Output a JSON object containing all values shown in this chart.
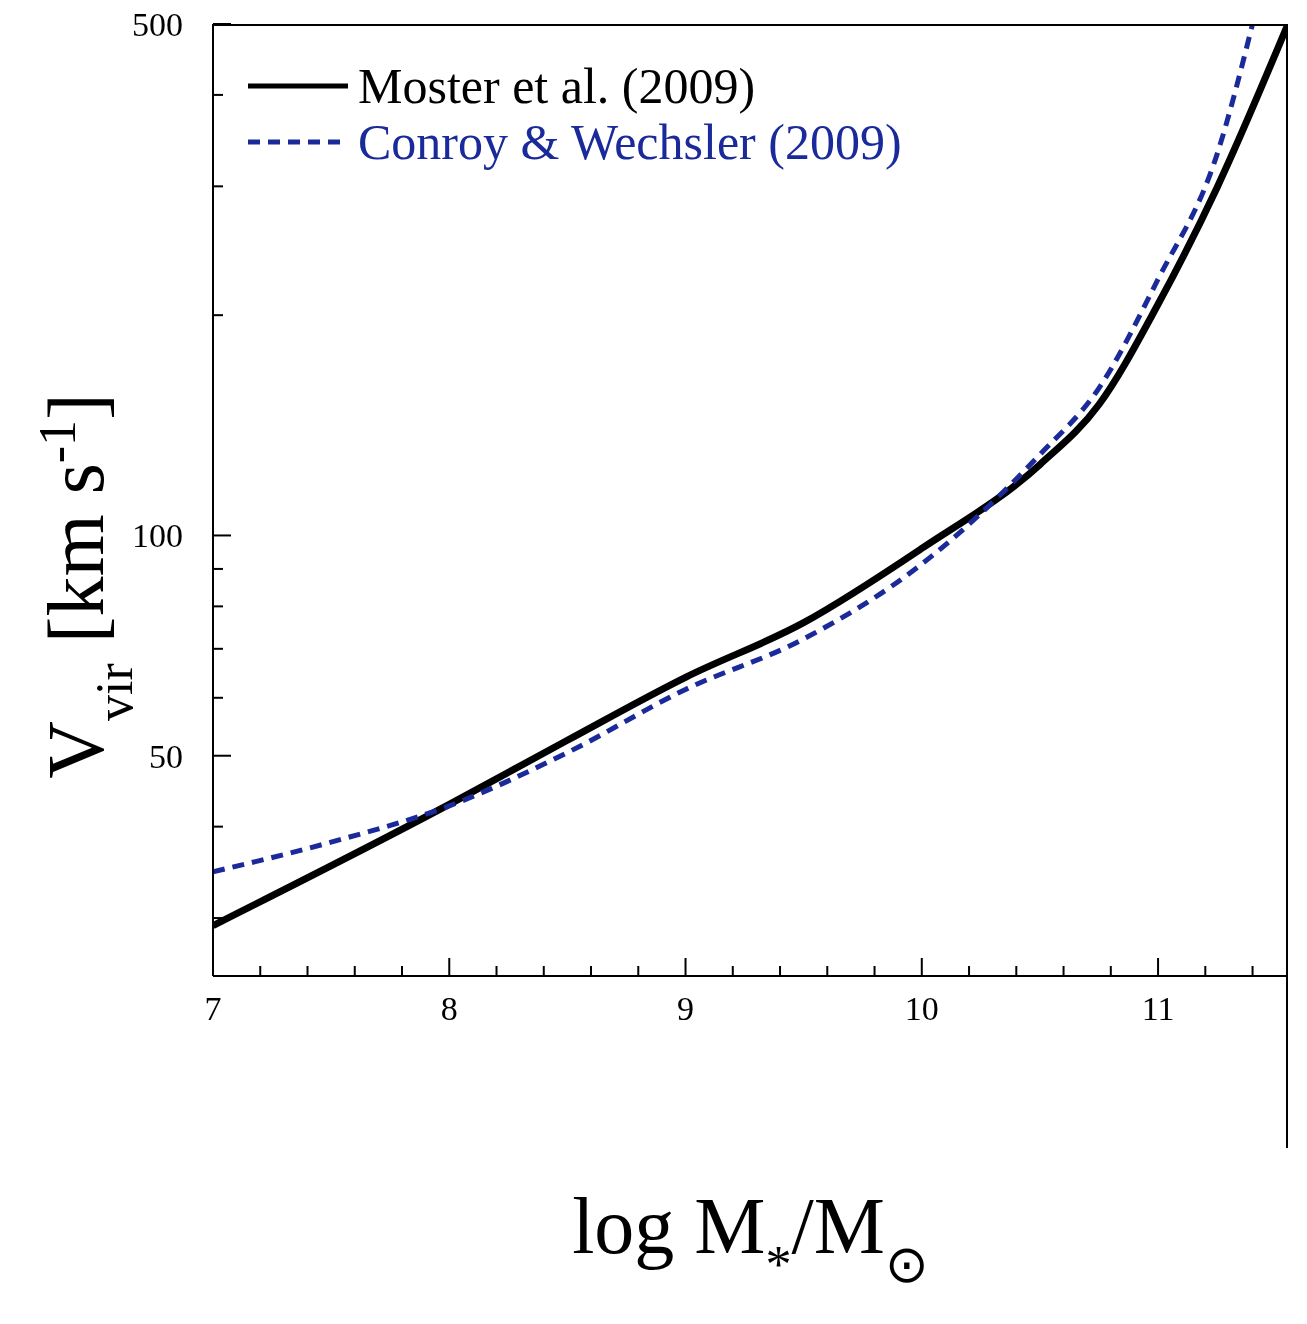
{
  "chart_data": {
    "type": "line",
    "xlabel": "log M$_{*}$/M$_{⊙}$",
    "ylabel": "V$_{vir}$ [km s$^{-1}$]",
    "log": "y",
    "xlim": [
      7,
      11.55
    ],
    "ylim": [
      25,
      500
    ],
    "xticks": [
      7,
      {
        "value": 7.2,
        "label": null
      },
      {
        "value": 7.4,
        "label": null
      },
      {
        "value": 7.6,
        "label": null
      },
      {
        "value": 7.8,
        "label": null
      },
      8,
      {
        "value": 8.2,
        "label": null
      },
      {
        "value": 8.4,
        "label": null
      },
      {
        "value": 8.6,
        "label": null
      },
      {
        "value": 8.8,
        "label": null
      },
      9,
      {
        "value": 9.2,
        "label": null
      },
      {
        "value": 9.4,
        "label": null
      },
      {
        "value": 9.6,
        "label": null
      },
      {
        "value": 9.8,
        "label": null
      },
      10,
      {
        "value": 10.2,
        "label": null
      },
      {
        "value": 10.4,
        "label": null
      },
      {
        "value": 10.6,
        "label": null
      },
      {
        "value": 10.8,
        "label": null
      },
      11,
      {
        "value": 11.2,
        "label": null
      },
      {
        "value": 11.4,
        "label": null
      }
    ],
    "yticks": [
      {
        "value": 30,
        "label": null
      },
      {
        "value": 40,
        "label": null
      },
      50,
      {
        "value": 60,
        "label": null
      },
      {
        "value": 70,
        "label": null
      },
      {
        "value": 80,
        "label": null
      },
      {
        "value": 90,
        "label": null
      },
      100,
      {
        "value": 200,
        "label": null
      },
      {
        "value": 300,
        "label": null
      },
      {
        "value": 400,
        "label": null
      },
      500
    ],
    "legend": "top left",
    "marker": "none",
    "series": [
      {
        "name": "Moster et al. (2009)",
        "color": "#000000",
        "line_style": "solid",
        "x": [
          7,
          8,
          8.5,
          9,
          9.5,
          10,
          10.5,
          10.75,
          11,
          11.25,
          11.55
        ],
        "values": [
          29.3,
          42.9,
          52.5,
          64,
          76,
          96,
          125,
          151,
          207,
          299,
          500
        ]
      },
      {
        "name": "Conroy & Wechsler (2009)",
        "color": "#1a2a9a",
        "line_style": "dashed",
        "x": [
          7,
          7.5,
          8,
          8.5,
          9,
          9.5,
          10,
          10.5,
          10.75,
          11,
          11.25,
          11.4
        ],
        "values": [
          34.7,
          38.1,
          42.7,
          50.5,
          61.6,
          72.2,
          91.4,
          129,
          159,
          224,
          332,
          500
        ]
      }
    ]
  }
}
